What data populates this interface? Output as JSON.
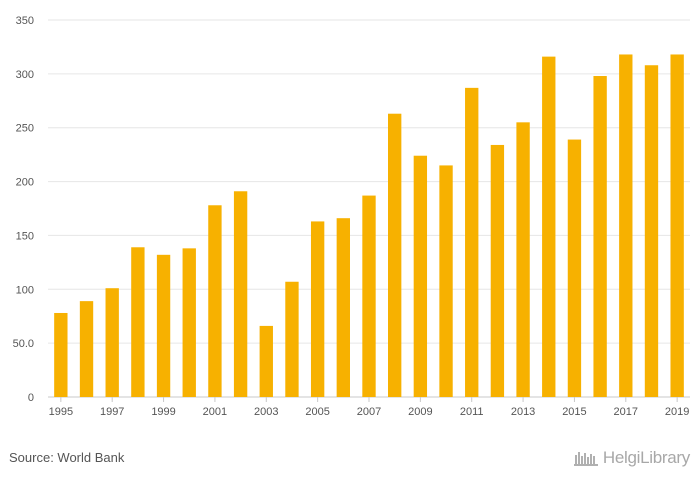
{
  "chart_data": {
    "type": "bar",
    "categories": [
      "1995",
      "1996",
      "1997",
      "1998",
      "1999",
      "2000",
      "2001",
      "2002",
      "2003",
      "2004",
      "2005",
      "2006",
      "2007",
      "2008",
      "2009",
      "2010",
      "2011",
      "2012",
      "2013",
      "2014",
      "2015",
      "2016",
      "2017",
      "2018",
      "2019"
    ],
    "values": [
      78,
      89,
      101,
      139,
      132,
      138,
      178,
      191,
      66,
      107,
      163,
      166,
      187,
      263,
      224,
      215,
      287,
      234,
      255,
      316,
      239,
      298,
      318,
      308,
      318
    ],
    "x_tick_labels": [
      "1995",
      "1997",
      "1999",
      "2001",
      "2003",
      "2005",
      "2007",
      "2009",
      "2011",
      "2013",
      "2015",
      "2017",
      "2019"
    ],
    "y_ticks": [
      0,
      50,
      100,
      150,
      200,
      250,
      300,
      350
    ],
    "y_tick_labels": [
      "0",
      "50.0",
      "100",
      "150",
      "200",
      "250",
      "300",
      "350"
    ],
    "ylim": [
      0,
      350
    ],
    "grid": true,
    "bar_color": "#F7B100",
    "title": "",
    "xlabel": "",
    "ylabel": ""
  },
  "footer": {
    "source": "Source: World Bank",
    "brand": "HelgiLibrary",
    "brand_icon": "bookshelf-icon"
  }
}
